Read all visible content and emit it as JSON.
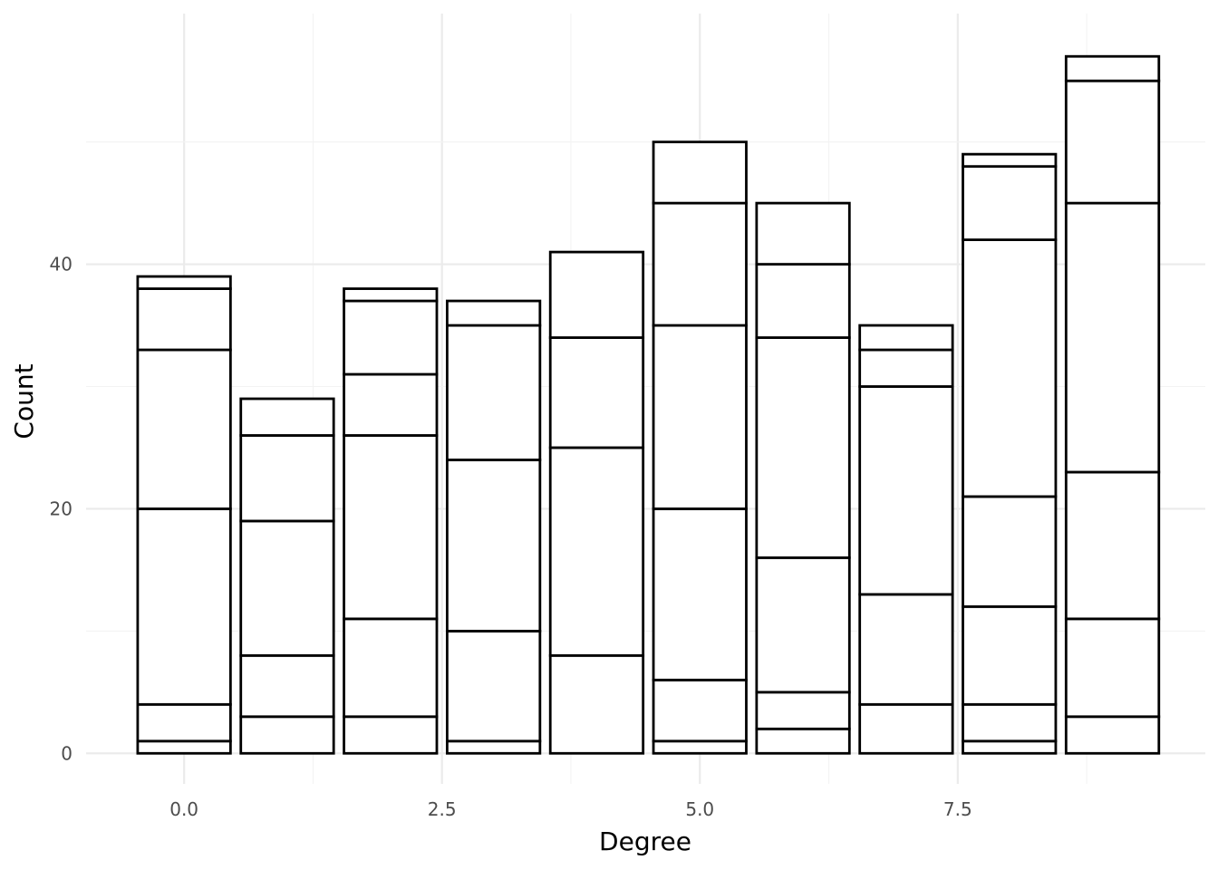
{
  "chart_data": {
    "type": "bar",
    "stacked": true,
    "xlabel": "Degree",
    "ylabel": "Count",
    "x": [
      0,
      1,
      2,
      3,
      4,
      5,
      6,
      7,
      8,
      9
    ],
    "xticks": [
      0.0,
      2.5,
      5.0,
      7.5
    ],
    "xtick_labels": [
      "0.0",
      "2.5",
      "5.0",
      "7.5"
    ],
    "xlim": [
      -0.95,
      9.9
    ],
    "yticks": [
      0,
      20,
      40
    ],
    "ytick_labels": [
      "0",
      "20",
      "40"
    ],
    "ylim": [
      -2.5,
      60.5
    ],
    "grid": true,
    "fill_color": "#ffffff",
    "stroke_color": "#000000",
    "stack_boundaries": [
      [
        1,
        4,
        20,
        33,
        38,
        39
      ],
      [
        3,
        8,
        19,
        26,
        29
      ],
      [
        3,
        11,
        26,
        31,
        37,
        38
      ],
      [
        1,
        10,
        24,
        35,
        37
      ],
      [
        8,
        25,
        34,
        41
      ],
      [
        1,
        6,
        20,
        35,
        45,
        50
      ],
      [
        2,
        5,
        16,
        34,
        40,
        45
      ],
      [
        4,
        13,
        30,
        33,
        35
      ],
      [
        1,
        4,
        12,
        21,
        42,
        48,
        49
      ],
      [
        3,
        11,
        23,
        45,
        55,
        57
      ]
    ],
    "totals": [
      39,
      29,
      38,
      37,
      41,
      50,
      45,
      35,
      49,
      57
    ]
  }
}
